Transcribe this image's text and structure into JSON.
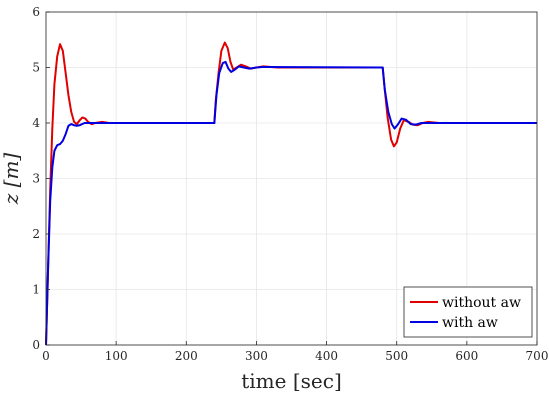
{
  "chart_data": {
    "type": "line",
    "xlabel": "time [sec]",
    "ylabel": "z [m]",
    "xlim": [
      0,
      700
    ],
    "ylim": [
      0,
      6
    ],
    "xticks": [
      0,
      100,
      200,
      300,
      400,
      500,
      600,
      700
    ],
    "yticks": [
      0,
      1,
      2,
      3,
      4,
      5,
      6
    ],
    "grid": true,
    "legend_position": "bottom-right",
    "series": [
      {
        "name": "without aw",
        "color": "#e00000",
        "points": [
          [
            0,
            0
          ],
          [
            3,
            1.4
          ],
          [
            6,
            2.8
          ],
          [
            9,
            3.9
          ],
          [
            12,
            4.7
          ],
          [
            16,
            5.2
          ],
          [
            20,
            5.42
          ],
          [
            24,
            5.3
          ],
          [
            28,
            4.9
          ],
          [
            32,
            4.5
          ],
          [
            36,
            4.2
          ],
          [
            40,
            4.02
          ],
          [
            44,
            3.98
          ],
          [
            48,
            4.05
          ],
          [
            52,
            4.1
          ],
          [
            56,
            4.08
          ],
          [
            60,
            4.02
          ],
          [
            65,
            3.98
          ],
          [
            70,
            4.0
          ],
          [
            80,
            4.02
          ],
          [
            90,
            4.0
          ],
          [
            100,
            4.0
          ],
          [
            240,
            4.0
          ],
          [
            242,
            4.4
          ],
          [
            246,
            4.9
          ],
          [
            250,
            5.3
          ],
          [
            255,
            5.45
          ],
          [
            259,
            5.35
          ],
          [
            263,
            5.1
          ],
          [
            267,
            4.96
          ],
          [
            272,
            5.0
          ],
          [
            278,
            5.05
          ],
          [
            285,
            5.02
          ],
          [
            292,
            4.98
          ],
          [
            300,
            5.0
          ],
          [
            310,
            5.02
          ],
          [
            330,
            5.0
          ],
          [
            480,
            5.0
          ],
          [
            483,
            4.6
          ],
          [
            487,
            4.1
          ],
          [
            492,
            3.7
          ],
          [
            496,
            3.58
          ],
          [
            500,
            3.65
          ],
          [
            505,
            3.9
          ],
          [
            510,
            4.05
          ],
          [
            517,
            4.02
          ],
          [
            523,
            3.97
          ],
          [
            530,
            3.96
          ],
          [
            537,
            4.0
          ],
          [
            545,
            4.02
          ],
          [
            560,
            4.0
          ],
          [
            580,
            4.0
          ],
          [
            700,
            4.0
          ]
        ]
      },
      {
        "name": "with aw",
        "color": "#0000e0",
        "points": [
          [
            0,
            0
          ],
          [
            3,
            1.4
          ],
          [
            6,
            2.6
          ],
          [
            9,
            3.2
          ],
          [
            12,
            3.5
          ],
          [
            16,
            3.6
          ],
          [
            20,
            3.62
          ],
          [
            24,
            3.68
          ],
          [
            28,
            3.8
          ],
          [
            32,
            3.95
          ],
          [
            36,
            3.98
          ],
          [
            40,
            3.96
          ],
          [
            44,
            3.95
          ],
          [
            48,
            3.96
          ],
          [
            55,
            4.0
          ],
          [
            60,
            4.0
          ],
          [
            80,
            4.0
          ],
          [
            100,
            4.0
          ],
          [
            240,
            4.0
          ],
          [
            243,
            4.5
          ],
          [
            247,
            4.9
          ],
          [
            252,
            5.08
          ],
          [
            256,
            5.1
          ],
          [
            260,
            4.98
          ],
          [
            264,
            4.92
          ],
          [
            269,
            4.96
          ],
          [
            275,
            5.02
          ],
          [
            282,
            5.0
          ],
          [
            290,
            4.98
          ],
          [
            300,
            5.0
          ],
          [
            310,
            5.01
          ],
          [
            480,
            5.0
          ],
          [
            483,
            4.6
          ],
          [
            488,
            4.2
          ],
          [
            493,
            3.98
          ],
          [
            497,
            3.9
          ],
          [
            502,
            3.98
          ],
          [
            507,
            4.08
          ],
          [
            513,
            4.06
          ],
          [
            520,
            3.98
          ],
          [
            527,
            3.97
          ],
          [
            535,
            4.0
          ],
          [
            545,
            4.0
          ],
          [
            700,
            4.0
          ]
        ]
      }
    ]
  }
}
